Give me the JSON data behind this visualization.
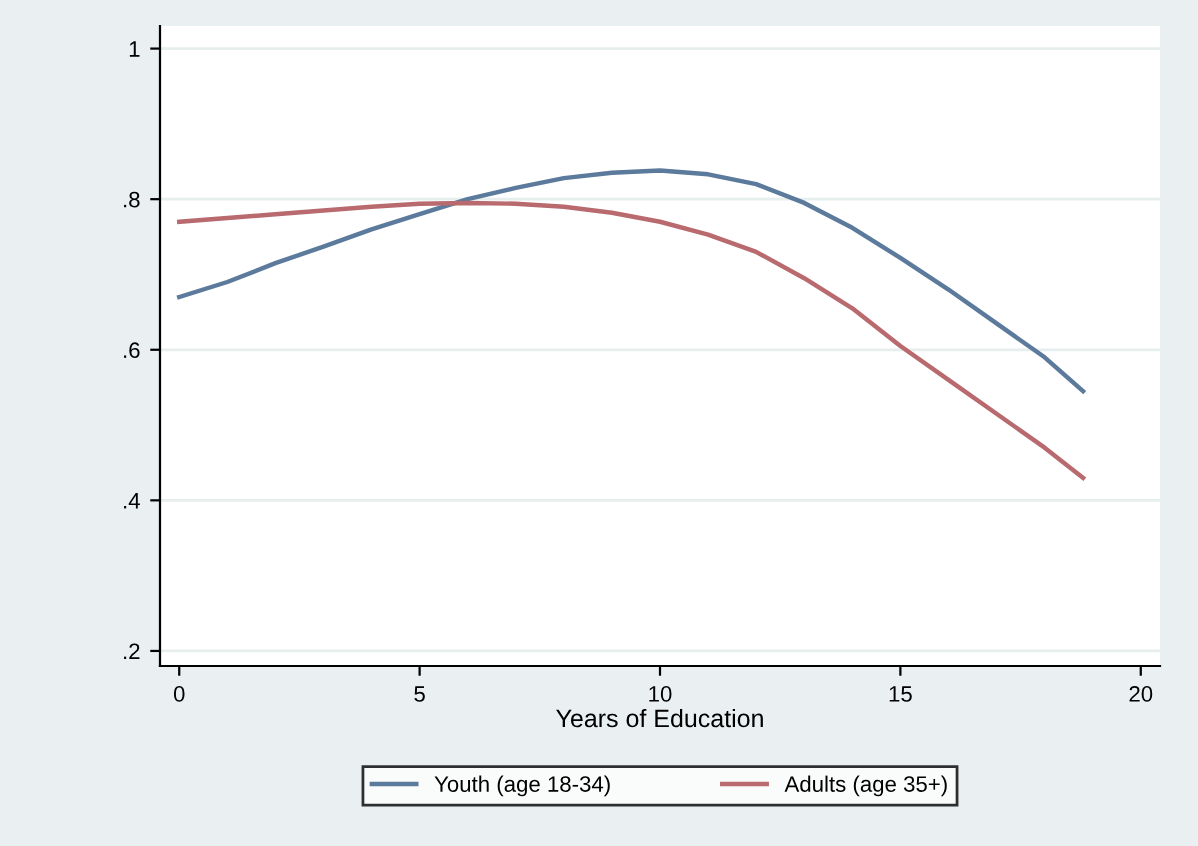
{
  "chart_data": {
    "type": "line",
    "xlabel": "Years of Education",
    "x": [
      0,
      1,
      2,
      3,
      4,
      5,
      6,
      7,
      8,
      9,
      10,
      11,
      12,
      13,
      14,
      15,
      16,
      17,
      18,
      18.8
    ],
    "series": [
      {
        "name": "Youth (age 18-34)",
        "color": "#5b7a9c",
        "values": [
          0.67,
          0.69,
          0.715,
          0.737,
          0.76,
          0.78,
          0.8,
          0.815,
          0.828,
          0.835,
          0.838,
          0.833,
          0.82,
          0.795,
          0.762,
          0.722,
          0.68,
          0.635,
          0.59,
          0.545
        ]
      },
      {
        "name": "Adults (age 35+)",
        "color": "#b86a6e",
        "values": [
          0.77,
          0.775,
          0.78,
          0.785,
          0.79,
          0.794,
          0.795,
          0.794,
          0.79,
          0.782,
          0.77,
          0.753,
          0.73,
          0.695,
          0.655,
          0.605,
          0.56,
          0.515,
          0.47,
          0.43
        ]
      }
    ],
    "xlim": [
      -0.4,
      20.4
    ],
    "ylim": [
      0.18,
      1.03
    ],
    "xticks": [
      0,
      5,
      10,
      15,
      20
    ],
    "yticks": [
      {
        "value": 0.2,
        "label": ".2"
      },
      {
        "value": 0.4,
        "label": ".4"
      },
      {
        "value": 0.6,
        "label": ".6"
      },
      {
        "value": 0.8,
        "label": ".8"
      },
      {
        "value": 1,
        "label": "1"
      }
    ],
    "grid": "y",
    "legend": "bottom",
    "marker": "none",
    "line_style": "solid"
  }
}
